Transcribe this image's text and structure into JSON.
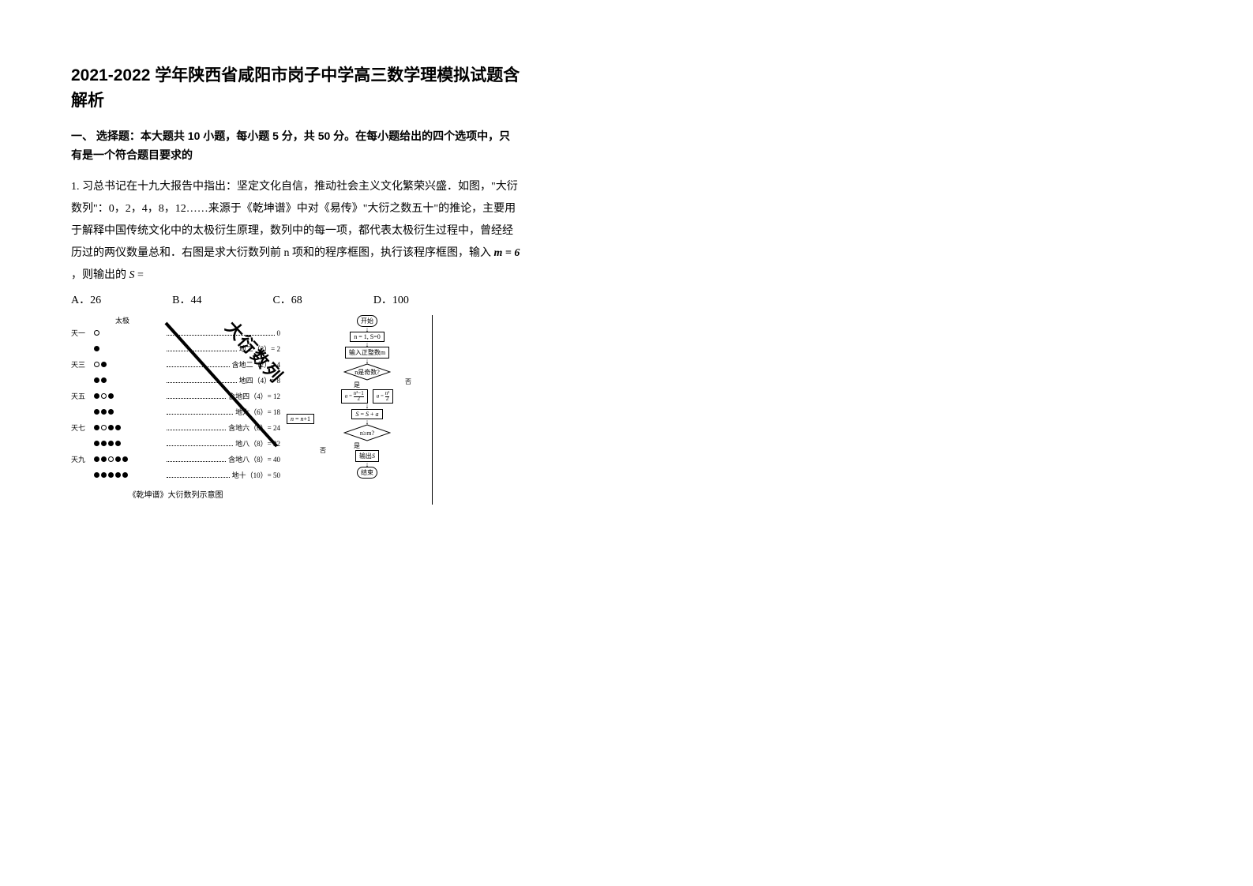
{
  "title": "2021-2022 学年陕西省咸阳市岗子中学高三数学理模拟试题含解析",
  "section_header": "一、 选择题：本大题共 10 小题，每小题 5 分，共 50 分。在每小题给出的四个选项中，只有是一个符合题目要求的",
  "q1": {
    "stem_part1": "1. 习总书记在十九大报告中指出：坚定文化自信，推动社会主义文化繁荣兴盛．如图，\"大衍数列\"：0，2，4，8，12……来源于《乾坤谱》中对《易传》\"大衍之数五十\"的推论，主要用于解释中国传统文化中的太极衍生原理，数列中的每一项，都代表太极衍生过程中，曾经经历过的两仪数量总和．右图是求大衍数列前 n 项和的程序框图，执行该程序框图，输入 ",
    "m_expr": "m = 6",
    "stem_part2": "，则输出的 ",
    "s_var": "S",
    "stem_part3": "=",
    "options": {
      "A": "A．26",
      "B": "B．44",
      "C": "C．68",
      "D": "D．100"
    }
  },
  "left_diagram": {
    "rows_left": [
      "天一",
      "",
      "天三",
      "",
      "天五",
      "",
      "天七",
      "",
      "天九",
      ""
    ],
    "top_label": "太极",
    "rows_right": [
      "0",
      "地二（2）= 2",
      "含地二（2）= 4",
      "地四（4）= 8",
      "含地四（4）= 12",
      "地六（6）= 18",
      "含地六（6）= 24",
      "地八（8）= 32",
      "含地八（8）= 40",
      "地十（10）= 50"
    ],
    "circle_counts": [
      {
        "w": 1,
        "b": 0,
        "arc": 0
      },
      {
        "w": 0,
        "b": 1,
        "arc": 2
      },
      {
        "w": 1,
        "b": 1,
        "arc": 2
      },
      {
        "w": 0,
        "b": 2,
        "arc": 2
      },
      {
        "w": 1,
        "b": 2,
        "arc": 2
      },
      {
        "w": 0,
        "b": 3,
        "arc": 2
      },
      {
        "w": 1,
        "b": 3,
        "arc": 2
      },
      {
        "w": 0,
        "b": 4,
        "arc": 2
      },
      {
        "w": 1,
        "b": 4,
        "arc": 2
      },
      {
        "w": 0,
        "b": 5,
        "arc": 2
      }
    ],
    "caption": "《乾坤谱》大衍数列示意图",
    "diag_text": "大衍数列"
  },
  "flowchart": {
    "start": "开始",
    "init": "n = 1, S=0",
    "input": "输入正整数m",
    "cond1": "n是奇数?",
    "yes1": "是",
    "no1": "否",
    "calc_odd": "a = (n²−1)/2",
    "calc_even": "a = n²/2",
    "accum": "S = S + a",
    "cond2": "n≥m?",
    "yes2": "是",
    "no2": "否",
    "inc": "n = n+1",
    "output": "输出S",
    "end": "结束"
  },
  "colors": {
    "bg": "#ffffff",
    "fg": "#000000"
  }
}
